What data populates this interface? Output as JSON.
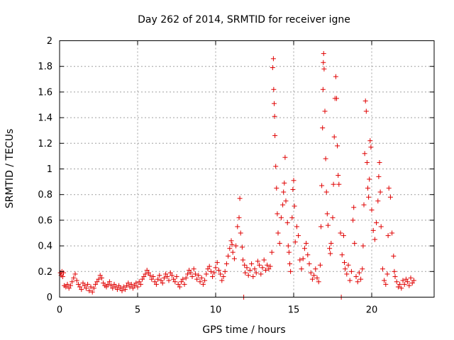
{
  "chart_data": {
    "type": "scatter",
    "title": "Day 262 of 2014, SRMTID for receiver igne",
    "xlabel": "GPS time / hours",
    "ylabel": "SRMTID / TECUs",
    "xlim": [
      0,
      24
    ],
    "ylim": [
      0,
      2
    ],
    "xticks": [
      0,
      5,
      10,
      15,
      20
    ],
    "xtick_labels": [
      "0",
      "5",
      "10",
      "15",
      "20"
    ],
    "yticks": [
      0,
      0.2,
      0.4,
      0.6,
      0.8,
      1,
      1.2,
      1.4,
      1.6,
      1.8,
      2
    ],
    "ytick_labels": [
      "0",
      "0.2",
      "0.4",
      "0.6",
      "0.8",
      "1",
      "1.2",
      "1.4",
      "1.6",
      "1.8",
      "2"
    ],
    "grid": true,
    "marker": "+",
    "color": "#e00000",
    "series": [
      {
        "name": "SRMTID",
        "points": [
          [
            0.05,
            0.19
          ],
          [
            0.1,
            0.17
          ],
          [
            0.15,
            0.2
          ],
          [
            0.2,
            0.16
          ],
          [
            0.25,
            0.19
          ],
          [
            0.3,
            0.09
          ],
          [
            0.4,
            0.08
          ],
          [
            0.5,
            0.1
          ],
          [
            0.6,
            0.07
          ],
          [
            0.7,
            0.09
          ],
          [
            0.8,
            0.12
          ],
          [
            0.9,
            0.15
          ],
          [
            1.0,
            0.18
          ],
          [
            1.1,
            0.13
          ],
          [
            1.2,
            0.1
          ],
          [
            1.3,
            0.08
          ],
          [
            1.4,
            0.06
          ],
          [
            1.5,
            0.11
          ],
          [
            1.6,
            0.09
          ],
          [
            1.7,
            0.07
          ],
          [
            1.8,
            0.1
          ],
          [
            1.9,
            0.05
          ],
          [
            2.0,
            0.08
          ],
          [
            2.1,
            0.04
          ],
          [
            2.2,
            0.07
          ],
          [
            2.3,
            0.1
          ],
          [
            2.4,
            0.12
          ],
          [
            2.5,
            0.14
          ],
          [
            2.6,
            0.17
          ],
          [
            2.7,
            0.15
          ],
          [
            2.8,
            0.11
          ],
          [
            2.9,
            0.09
          ],
          [
            3.0,
            0.08
          ],
          [
            3.1,
            0.1
          ],
          [
            3.2,
            0.12
          ],
          [
            3.3,
            0.09
          ],
          [
            3.4,
            0.07
          ],
          [
            3.5,
            0.1
          ],
          [
            3.6,
            0.08
          ],
          [
            3.7,
            0.06
          ],
          [
            3.8,
            0.09
          ],
          [
            3.9,
            0.07
          ],
          [
            4.0,
            0.05
          ],
          [
            4.1,
            0.08
          ],
          [
            4.2,
            0.06
          ],
          [
            4.3,
            0.09
          ],
          [
            4.4,
            0.11
          ],
          [
            4.5,
            0.08
          ],
          [
            4.6,
            0.1
          ],
          [
            4.7,
            0.07
          ],
          [
            4.8,
            0.09
          ],
          [
            4.9,
            0.11
          ],
          [
            5.0,
            0.08
          ],
          [
            5.1,
            0.12
          ],
          [
            5.2,
            0.1
          ],
          [
            5.3,
            0.14
          ],
          [
            5.4,
            0.16
          ],
          [
            5.5,
            0.18
          ],
          [
            5.6,
            0.21
          ],
          [
            5.7,
            0.19
          ],
          [
            5.8,
            0.17
          ],
          [
            5.9,
            0.14
          ],
          [
            6.0,
            0.16
          ],
          [
            6.1,
            0.12
          ],
          [
            6.2,
            0.1
          ],
          [
            6.3,
            0.14
          ],
          [
            6.4,
            0.17
          ],
          [
            6.5,
            0.13
          ],
          [
            6.6,
            0.11
          ],
          [
            6.7,
            0.15
          ],
          [
            6.8,
            0.18
          ],
          [
            6.9,
            0.16
          ],
          [
            7.0,
            0.13
          ],
          [
            7.1,
            0.19
          ],
          [
            7.2,
            0.17
          ],
          [
            7.3,
            0.14
          ],
          [
            7.4,
            0.12
          ],
          [
            7.5,
            0.16
          ],
          [
            7.6,
            0.1
          ],
          [
            7.7,
            0.08
          ],
          [
            7.8,
            0.12
          ],
          [
            7.9,
            0.14
          ],
          [
            8.0,
            0.1
          ],
          [
            8.1,
            0.15
          ],
          [
            8.2,
            0.18
          ],
          [
            8.3,
            0.21
          ],
          [
            8.4,
            0.19
          ],
          [
            8.5,
            0.16
          ],
          [
            8.6,
            0.22
          ],
          [
            8.7,
            0.18
          ],
          [
            8.8,
            0.14
          ],
          [
            8.9,
            0.17
          ],
          [
            9.0,
            0.12
          ],
          [
            9.1,
            0.15
          ],
          [
            9.2,
            0.1
          ],
          [
            9.3,
            0.13
          ],
          [
            9.4,
            0.18
          ],
          [
            9.5,
            0.22
          ],
          [
            9.6,
            0.24
          ],
          [
            9.7,
            0.2
          ],
          [
            9.8,
            0.16
          ],
          [
            9.9,
            0.19
          ],
          [
            10.0,
            0.23
          ],
          [
            10.1,
            0.27
          ],
          [
            10.2,
            0.21
          ],
          [
            10.3,
            0.18
          ],
          [
            10.4,
            0.13
          ],
          [
            10.5,
            0.16
          ],
          [
            10.6,
            0.2
          ],
          [
            10.7,
            0.26
          ],
          [
            10.8,
            0.32
          ],
          [
            10.9,
            0.38
          ],
          [
            11.0,
            0.44
          ],
          [
            11.05,
            0.41
          ],
          [
            11.1,
            0.35
          ],
          [
            11.2,
            0.3
          ],
          [
            11.3,
            0.4
          ],
          [
            11.4,
            0.55
          ],
          [
            11.5,
            0.62
          ],
          [
            11.55,
            0.77
          ],
          [
            11.6,
            0.5
          ],
          [
            11.7,
            0.39
          ],
          [
            11.75,
            0.29
          ],
          [
            11.8,
            0.0
          ],
          [
            11.85,
            0.25
          ],
          [
            11.9,
            0.19
          ],
          [
            12.0,
            0.23
          ],
          [
            12.1,
            0.17
          ],
          [
            12.2,
            0.21
          ],
          [
            12.3,
            0.26
          ],
          [
            12.4,
            0.16
          ],
          [
            12.5,
            0.22
          ],
          [
            12.6,
            0.19
          ],
          [
            12.7,
            0.28
          ],
          [
            12.8,
            0.25
          ],
          [
            12.9,
            0.18
          ],
          [
            13.0,
            0.23
          ],
          [
            13.1,
            0.29
          ],
          [
            13.2,
            0.21
          ],
          [
            13.3,
            0.25
          ],
          [
            13.4,
            0.22
          ],
          [
            13.5,
            0.24
          ],
          [
            13.6,
            0.35
          ],
          [
            13.65,
            1.79
          ],
          [
            13.7,
            1.86
          ],
          [
            13.72,
            1.62
          ],
          [
            13.75,
            1.51
          ],
          [
            13.78,
            1.41
          ],
          [
            13.8,
            1.26
          ],
          [
            13.85,
            1.02
          ],
          [
            13.9,
            0.85
          ],
          [
            13.95,
            0.65
          ],
          [
            14.0,
            0.5
          ],
          [
            14.1,
            0.42
          ],
          [
            14.2,
            0.62
          ],
          [
            14.3,
            0.72
          ],
          [
            14.35,
            0.82
          ],
          [
            14.4,
            0.89
          ],
          [
            14.45,
            1.09
          ],
          [
            14.5,
            0.75
          ],
          [
            14.6,
            0.58
          ],
          [
            14.65,
            0.4
          ],
          [
            14.7,
            0.35
          ],
          [
            14.75,
            0.26
          ],
          [
            14.8,
            0.2
          ],
          [
            14.9,
            0.62
          ],
          [
            14.95,
            0.84
          ],
          [
            15.0,
            0.91
          ],
          [
            15.05,
            0.71
          ],
          [
            15.1,
            0.43
          ],
          [
            15.2,
            0.55
          ],
          [
            15.3,
            0.48
          ],
          [
            15.4,
            0.29
          ],
          [
            15.5,
            0.22
          ],
          [
            15.6,
            0.3
          ],
          [
            15.7,
            0.38
          ],
          [
            15.8,
            0.42
          ],
          [
            15.9,
            0.33
          ],
          [
            16.0,
            0.26
          ],
          [
            16.1,
            0.19
          ],
          [
            16.2,
            0.14
          ],
          [
            16.3,
            0.17
          ],
          [
            16.4,
            0.22
          ],
          [
            16.5,
            0.15
          ],
          [
            16.6,
            0.12
          ],
          [
            16.7,
            0.25
          ],
          [
            16.75,
            0.55
          ],
          [
            16.8,
            0.87
          ],
          [
            16.85,
            1.32
          ],
          [
            16.88,
            1.62
          ],
          [
            16.9,
            1.83
          ],
          [
            16.92,
            1.9
          ],
          [
            16.95,
            1.78
          ],
          [
            17.0,
            1.45
          ],
          [
            17.05,
            1.08
          ],
          [
            17.1,
            0.82
          ],
          [
            17.15,
            0.65
          ],
          [
            17.2,
            0.56
          ],
          [
            17.3,
            0.38
          ],
          [
            17.35,
            0.34
          ],
          [
            17.4,
            0.42
          ],
          [
            17.5,
            0.62
          ],
          [
            17.55,
            0.88
          ],
          [
            17.6,
            1.25
          ],
          [
            17.65,
            1.55
          ],
          [
            17.7,
            1.72
          ],
          [
            17.75,
            1.55
          ],
          [
            17.8,
            1.18
          ],
          [
            17.85,
            0.95
          ],
          [
            17.9,
            0.88
          ],
          [
            18.0,
            0.5
          ],
          [
            18.05,
            0.0
          ],
          [
            18.1,
            0.33
          ],
          [
            18.2,
            0.48
          ],
          [
            18.25,
            0.27
          ],
          [
            18.3,
            0.22
          ],
          [
            18.4,
            0.18
          ],
          [
            18.5,
            0.25
          ],
          [
            18.6,
            0.13
          ],
          [
            18.7,
            0.2
          ],
          [
            18.8,
            0.6
          ],
          [
            18.85,
            0.7
          ],
          [
            18.9,
            0.42
          ],
          [
            19.0,
            0.16
          ],
          [
            19.1,
            0.12
          ],
          [
            19.2,
            0.19
          ],
          [
            19.3,
            0.14
          ],
          [
            19.4,
            0.22
          ],
          [
            19.45,
            0.4
          ],
          [
            19.5,
            0.72
          ],
          [
            19.55,
            1.12
          ],
          [
            19.6,
            1.53
          ],
          [
            19.65,
            1.45
          ],
          [
            19.7,
            1.05
          ],
          [
            19.75,
            0.85
          ],
          [
            19.8,
            0.78
          ],
          [
            19.85,
            0.92
          ],
          [
            19.9,
            1.22
          ],
          [
            19.95,
            1.17
          ],
          [
            20.0,
            0.68
          ],
          [
            20.1,
            0.52
          ],
          [
            20.2,
            0.45
          ],
          [
            20.3,
            0.58
          ],
          [
            20.4,
            0.75
          ],
          [
            20.45,
            0.94
          ],
          [
            20.5,
            1.05
          ],
          [
            20.55,
            0.82
          ],
          [
            20.6,
            0.55
          ],
          [
            20.7,
            0.22
          ],
          [
            20.8,
            0.13
          ],
          [
            20.9,
            0.1
          ],
          [
            21.0,
            0.18
          ],
          [
            21.05,
            0.48
          ],
          [
            21.1,
            0.85
          ],
          [
            21.2,
            0.78
          ],
          [
            21.3,
            0.5
          ],
          [
            21.4,
            0.32
          ],
          [
            21.45,
            0.2
          ],
          [
            21.5,
            0.16
          ],
          [
            21.6,
            0.12
          ],
          [
            21.7,
            0.08
          ],
          [
            21.8,
            0.1
          ],
          [
            21.9,
            0.07
          ],
          [
            22.0,
            0.13
          ],
          [
            22.1,
            0.1
          ],
          [
            22.2,
            0.14
          ],
          [
            22.3,
            0.12
          ],
          [
            22.4,
            0.09
          ],
          [
            22.5,
            0.15
          ],
          [
            22.6,
            0.11
          ],
          [
            22.7,
            0.13
          ]
        ]
      }
    ]
  }
}
